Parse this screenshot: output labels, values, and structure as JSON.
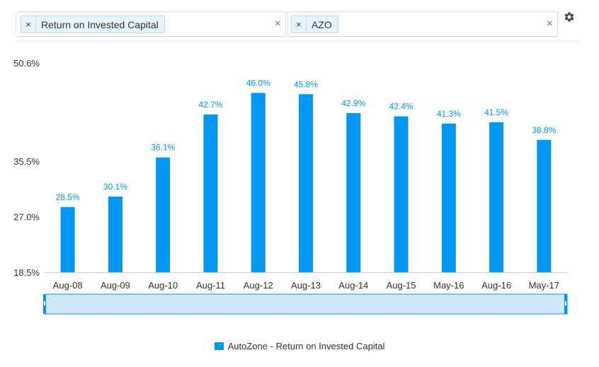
{
  "filters": {
    "metric_chip": "Return on Invested Capital",
    "ticker_chip": "AZO",
    "remove_glyph": "×",
    "clear_glyph": "×"
  },
  "colors": {
    "bar": "#0096f2",
    "label": "#0096f2",
    "navigator_fill": "#cfe9fb",
    "navigator_border": "#0096f2"
  },
  "legend": {
    "label": "AutoZone - Return on Invested Capital"
  },
  "chart_data": {
    "type": "bar",
    "categories": [
      "Aug-08",
      "Aug-09",
      "Aug-10",
      "Aug-11",
      "Aug-12",
      "Aug-13",
      "Aug-14",
      "Aug-15",
      "May-16",
      "Aug-16",
      "May-17"
    ],
    "series": [
      {
        "name": "AutoZone - Return on Invested Capital",
        "values": [
          28.5,
          30.1,
          36.1,
          42.7,
          46.0,
          45.8,
          42.9,
          42.4,
          41.3,
          41.5,
          38.8
        ],
        "labels": [
          "28.5%",
          "30.1%",
          "36.1%",
          "42.7%",
          "46.0%",
          "45.8%",
          "42.9%",
          "42.4%",
          "41.3%",
          "41.5%",
          "38.8%"
        ]
      }
    ],
    "y_ticks": [
      {
        "value": 18.5,
        "label": "18.5%"
      },
      {
        "value": 27.0,
        "label": "27.0%"
      },
      {
        "value": 35.5,
        "label": "35.5%"
      },
      {
        "value": 50.6,
        "label": "50.6%"
      }
    ],
    "ylim": [
      18.5,
      50.6
    ],
    "grid": false,
    "legend_position": "bottom-center",
    "title": "",
    "xlabel": "",
    "ylabel": ""
  }
}
